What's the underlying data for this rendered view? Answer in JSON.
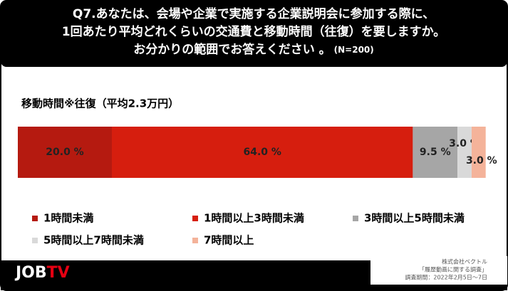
{
  "chart_data": {
    "type": "stacked-bar",
    "title_lines": [
      "Q7.あなたは、会場や企業で実施する企業説明会に参加する際に、",
      "1回あたり平均どれくらいの交通費と移動時間（往復）を要しますか。",
      "お分かりの範囲でお答えください 。"
    ],
    "note": "(N=200)",
    "categories": [
      "移動時間※往復（平均2.3万円）"
    ],
    "series": [
      {
        "name": "1時間未満",
        "color": "#b51a10",
        "values": [
          20.0
        ],
        "value_labels": [
          "20.0 %"
        ]
      },
      {
        "name": "1時間以上3時間未満",
        "color": "#d61e0e",
        "values": [
          64.0
        ],
        "value_labels": [
          "64.0 %"
        ]
      },
      {
        "name": "3時間以上5時間未満",
        "color": "#a6a6a6",
        "values": [
          9.5
        ],
        "value_labels": [
          "9.5 %"
        ]
      },
      {
        "name": "5時間以上7時間未満",
        "color": "#d9d9d9",
        "values": [
          3.0
        ],
        "value_labels": [
          "3.0 %"
        ]
      },
      {
        "name": "7時間以上",
        "color": "#f4b39a",
        "values": [
          3.0
        ],
        "value_labels": [
          "3.0 %"
        ]
      }
    ],
    "xlim": [
      0,
      100
    ],
    "footer_lines": [
      "株式会社ベクトル",
      "「履歴動画に関する調査」",
      "調査期間：2022年2月5日～7日"
    ],
    "logo_parts": [
      "JOB",
      "TV"
    ]
  }
}
